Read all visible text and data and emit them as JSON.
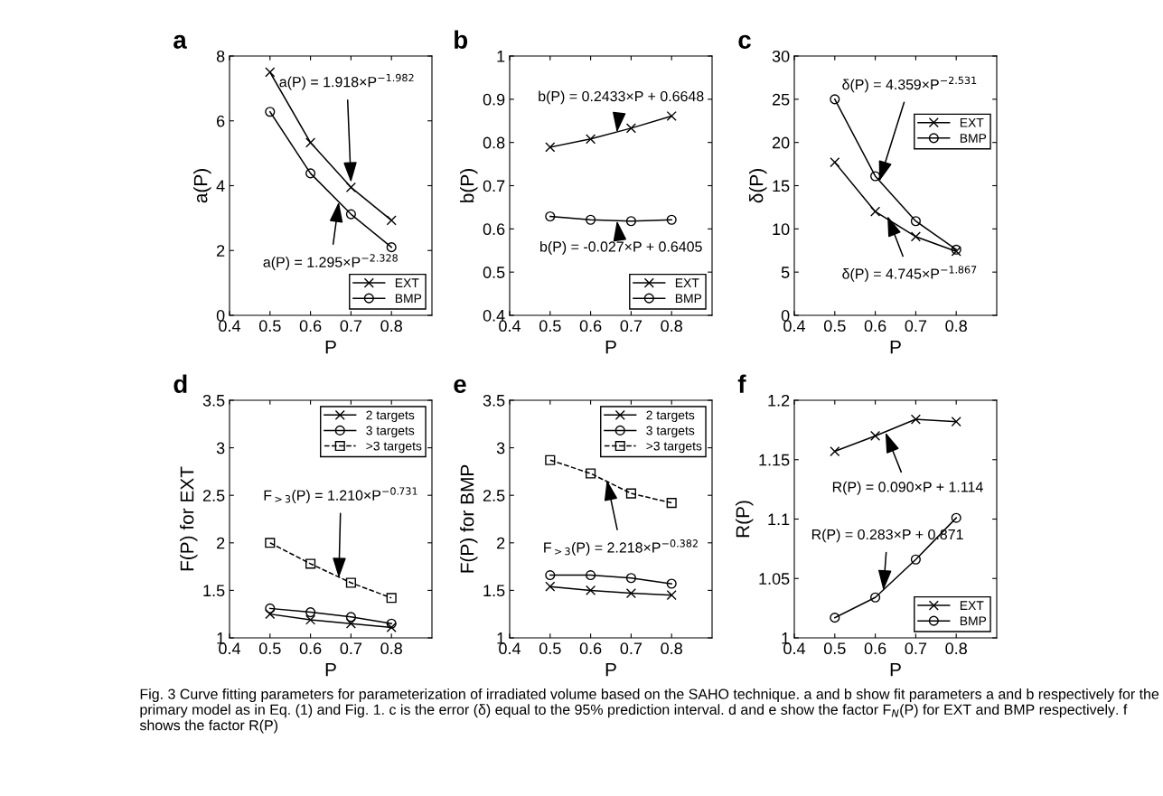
{
  "chart_data": [
    {
      "type": "line",
      "title": "a",
      "xlabel": "P",
      "ylabel": "a(P)",
      "x": [
        0.5,
        0.6,
        0.7,
        0.8
      ],
      "xlim": [
        0.4,
        0.9
      ],
      "xticks": [
        0.4,
        0.5,
        0.6,
        0.7,
        0.8
      ],
      "ylim": [
        0,
        8
      ],
      "yticks": [
        0,
        2,
        4,
        6,
        8
      ],
      "grid": false,
      "legend": "bottom right",
      "series": [
        {
          "name": "EXT",
          "color": "#000000",
          "marker": "cross",
          "line_style": "solid",
          "values": [
            7.5,
            5.33,
            3.95,
            2.93
          ]
        },
        {
          "name": "BMP",
          "color": "#000000",
          "marker": "circle",
          "line_style": "solid",
          "values": [
            6.28,
            4.38,
            3.12,
            2.1
          ]
        }
      ],
      "annotations": [
        {
          "text": "a(P) = 1.918×P$^{−1.982}$",
          "x": 0.7,
          "y": 4.1
        },
        {
          "text": "a(P) = 1.295×P$^{−2.328}$",
          "x": 0.67,
          "y": 3.5
        },
        "Fig. 3 Curve fitting parameters for parameterization of irradiated volume based on the SAHO technique. a and b show fit parameters a and b respectively for the primary model as in Eq. (1) and Fig. 1. c is the error (δ) equal to the 95% prediction interval. d and e show the factor F$_{N}$(P) for EXT and BMP respectively. f shows the factor R(P)"
      ]
    },
    {
      "type": "line",
      "title": "b",
      "xlabel": "P",
      "ylabel": "b(P)",
      "x": [
        0.5,
        0.6,
        0.7,
        0.8
      ],
      "xlim": [
        0.4,
        0.9
      ],
      "xticks": [
        0.4,
        0.5,
        0.6,
        0.7,
        0.8
      ],
      "ylim": [
        0.4,
        1
      ],
      "yticks": [
        0.4,
        0.5,
        0.6,
        0.7,
        0.8,
        0.9,
        1
      ],
      "grid": false,
      "legend": "bottom right",
      "series": [
        {
          "name": "EXT",
          "color": "#000000",
          "marker": "cross",
          "line_style": "solid",
          "values": [
            0.789,
            0.808,
            0.833,
            0.861
          ]
        },
        {
          "name": "BMP",
          "color": "#000000",
          "marker": "circle",
          "line_style": "solid",
          "values": [
            0.629,
            0.621,
            0.618,
            0.621
          ]
        }
      ],
      "annotations": [
        {
          "text": "b(P) = 0.2433×P + 0.6648",
          "x": 0.665,
          "y": 0.823
        },
        {
          "text": "b(P) = -0.027×P + 0.6405",
          "x": 0.665,
          "y": 0.619
        }
      ]
    },
    {
      "type": "line",
      "title": "c",
      "xlabel": "P",
      "ylabel": "δ(P)",
      "x": [
        0.5,
        0.6,
        0.7,
        0.8
      ],
      "xlim": [
        0.4,
        0.9
      ],
      "xticks": [
        0.4,
        0.5,
        0.6,
        0.7,
        0.8
      ],
      "ylim": [
        0,
        30
      ],
      "yticks": [
        0,
        5,
        10,
        15,
        20,
        25,
        30
      ],
      "grid": false,
      "legend": "top right",
      "series": [
        {
          "name": "EXT",
          "color": "#000000",
          "marker": "cross",
          "line_style": "solid",
          "values": [
            17.7,
            12.0,
            9.1,
            7.4
          ]
        },
        {
          "name": "BMP",
          "color": "#000000",
          "marker": "circle",
          "line_style": "solid",
          "values": [
            25.0,
            16.1,
            10.9,
            7.6
          ]
        }
      ],
      "annotations": [
        {
          "text": "δ(P) = 4.359×P$^{−2.531}$",
          "x": 0.61,
          "y": 15.5
        },
        {
          "text": "δ(P) = 4.745×P$^{−1.867}$",
          "x": 0.63,
          "y": 11.5
        }
      ]
    },
    {
      "type": "line",
      "title": "d",
      "xlabel": "P",
      "ylabel": "F(P) for EXT",
      "x": [
        0.5,
        0.6,
        0.7,
        0.8
      ],
      "xlim": [
        0.4,
        0.9
      ],
      "xticks": [
        0.4,
        0.5,
        0.6,
        0.7,
        0.8
      ],
      "ylim": [
        1,
        3.5
      ],
      "yticks": [
        1,
        1.5,
        2,
        2.5,
        3,
        3.5
      ],
      "grid": false,
      "legend": "top right",
      "series": [
        {
          "name": "2 targets",
          "color": "#000000",
          "marker": "cross",
          "line_style": "solid",
          "values": [
            1.25,
            1.19,
            1.15,
            1.11
          ]
        },
        {
          "name": "3 targets",
          "color": "#000000",
          "marker": "circle",
          "line_style": "solid",
          "values": [
            1.31,
            1.27,
            1.22,
            1.15
          ]
        },
        {
          "name": ">3 targets",
          "color": "#000000",
          "marker": "square",
          "line_style": "dashed",
          "values": [
            2.0,
            1.78,
            1.58,
            1.42
          ]
        }
      ],
      "annotations": [
        {
          "text": "F$_{>3}$(P) = 1.210×P$^{−0.731}$",
          "x": 0.67,
          "y": 1.63
        }
      ]
    },
    {
      "type": "line",
      "title": "e",
      "xlabel": "P",
      "ylabel": "F(P) for BMP",
      "x": [
        0.5,
        0.6,
        0.7,
        0.8
      ],
      "xlim": [
        0.4,
        0.9
      ],
      "xticks": [
        0.4,
        0.5,
        0.6,
        0.7,
        0.8
      ],
      "ylim": [
        1,
        3.5
      ],
      "yticks": [
        1,
        1.5,
        2,
        2.5,
        3,
        3.5
      ],
      "grid": false,
      "legend": "top right",
      "series": [
        {
          "name": "2 targets",
          "color": "#000000",
          "marker": "cross",
          "line_style": "solid",
          "values": [
            1.54,
            1.5,
            1.47,
            1.45
          ]
        },
        {
          "name": "3 targets",
          "color": "#000000",
          "marker": "circle",
          "line_style": "solid",
          "values": [
            1.66,
            1.66,
            1.63,
            1.57
          ]
        },
        {
          "name": ">3 targets",
          "color": "#000000",
          "marker": "square",
          "line_style": "dashed",
          "values": [
            2.87,
            2.73,
            2.52,
            2.42
          ]
        }
      ],
      "annotations": [
        {
          "text": "F$_{>3}$(P) = 2.218×P$^{−0.382}$",
          "x": 0.64,
          "y": 2.66
        }
      ]
    },
    {
      "type": "line",
      "title": "f",
      "xlabel": "P",
      "ylabel": "R(P)",
      "x": [
        0.5,
        0.6,
        0.7,
        0.8
      ],
      "xlim": [
        0.4,
        0.9
      ],
      "xticks": [
        0.4,
        0.5,
        0.6,
        0.7,
        0.8
      ],
      "ylim": [
        1,
        1.2
      ],
      "yticks": [
        1,
        1.05,
        1.1,
        1.15,
        1.2
      ],
      "grid": false,
      "legend": "bottom right",
      "series": [
        {
          "name": "EXT",
          "color": "#000000",
          "marker": "cross",
          "line_style": "solid",
          "values": [
            1.157,
            1.17,
            1.184,
            1.182
          ]
        },
        {
          "name": "BMP",
          "color": "#000000",
          "marker": "circle",
          "line_style": "solid",
          "values": [
            1.017,
            1.034,
            1.066,
            1.101
          ]
        }
      ],
      "annotations": [
        {
          "text": "R(P) = 0.090×P + 1.114",
          "x": 0.625,
          "y": 1.173
        },
        {
          "text": "R(P) = 0.283×P + 0.871",
          "x": 0.62,
          "y": 1.04
        }
      ]
    }
  ]
}
